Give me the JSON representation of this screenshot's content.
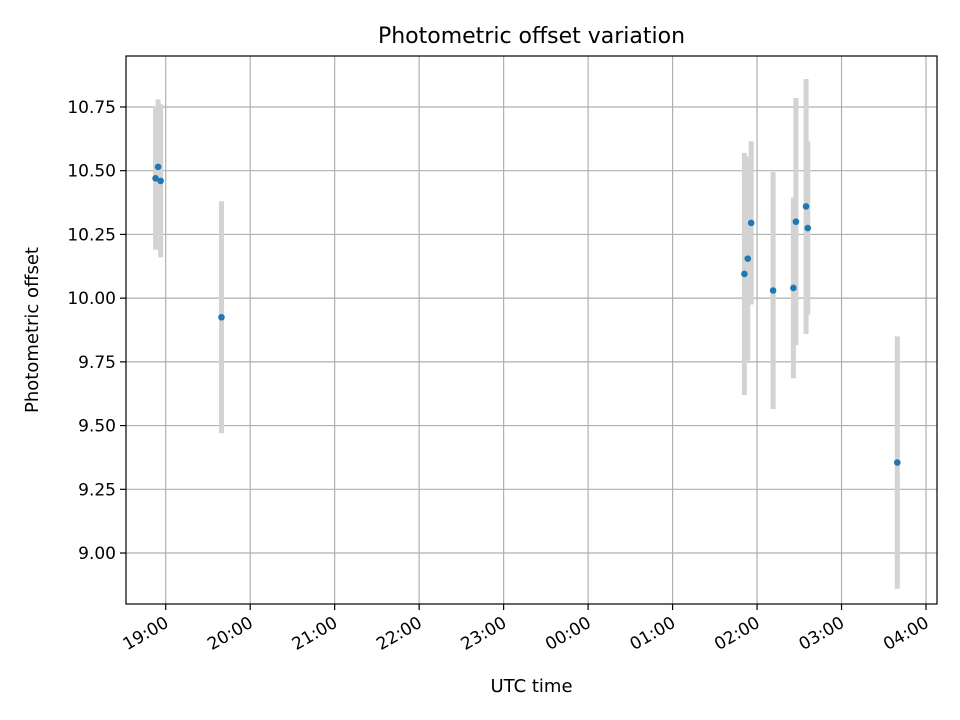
{
  "chart_data": {
    "type": "scatter",
    "title": "Photometric offset variation",
    "xlabel": "UTC time",
    "ylabel": "Photometric offset",
    "grid": true,
    "x_unit": "hours after 18:00 UTC",
    "xlim": [
      0.53,
      10.13
    ],
    "ylim": [
      8.8,
      10.95
    ],
    "x_ticks": [
      {
        "value": 1,
        "label": "19:00"
      },
      {
        "value": 2,
        "label": "20:00"
      },
      {
        "value": 3,
        "label": "21:00"
      },
      {
        "value": 4,
        "label": "22:00"
      },
      {
        "value": 5,
        "label": "23:00"
      },
      {
        "value": 6,
        "label": "00:00"
      },
      {
        "value": 7,
        "label": "01:00"
      },
      {
        "value": 8,
        "label": "02:00"
      },
      {
        "value": 9,
        "label": "03:00"
      },
      {
        "value": 10,
        "label": "04:00"
      }
    ],
    "y_ticks": [
      {
        "value": 9.0,
        "label": "9.00"
      },
      {
        "value": 9.25,
        "label": "9.25"
      },
      {
        "value": 9.5,
        "label": "9.50"
      },
      {
        "value": 9.75,
        "label": "9.75"
      },
      {
        "value": 10.0,
        "label": "10.00"
      },
      {
        "value": 10.25,
        "label": "10.25"
      },
      {
        "value": 10.5,
        "label": "10.50"
      },
      {
        "value": 10.75,
        "label": "10.75"
      }
    ],
    "series": [
      {
        "name": "Photometric offset",
        "marker_color": "#1f77b4",
        "errorbar_color": "#d3d3d3",
        "points": [
          {
            "x": 0.88,
            "y": 10.47,
            "err": 0.28
          },
          {
            "x": 0.91,
            "y": 10.515,
            "err": 0.265
          },
          {
            "x": 0.94,
            "y": 10.46,
            "err": 0.3
          },
          {
            "x": 1.66,
            "y": 9.925,
            "err": 0.455
          },
          {
            "x": 7.85,
            "y": 10.095,
            "err": 0.475
          },
          {
            "x": 7.89,
            "y": 10.155,
            "err": 0.4
          },
          {
            "x": 7.93,
            "y": 10.295,
            "err": 0.32
          },
          {
            "x": 8.19,
            "y": 10.03,
            "err": 0.465
          },
          {
            "x": 8.43,
            "y": 10.04,
            "err": 0.355
          },
          {
            "x": 8.46,
            "y": 10.3,
            "err": 0.485
          },
          {
            "x": 8.58,
            "y": 10.36,
            "err": 0.5
          },
          {
            "x": 8.6,
            "y": 10.275,
            "err": 0.34
          },
          {
            "x": 9.66,
            "y": 9.355,
            "err": 0.495
          }
        ]
      }
    ]
  }
}
